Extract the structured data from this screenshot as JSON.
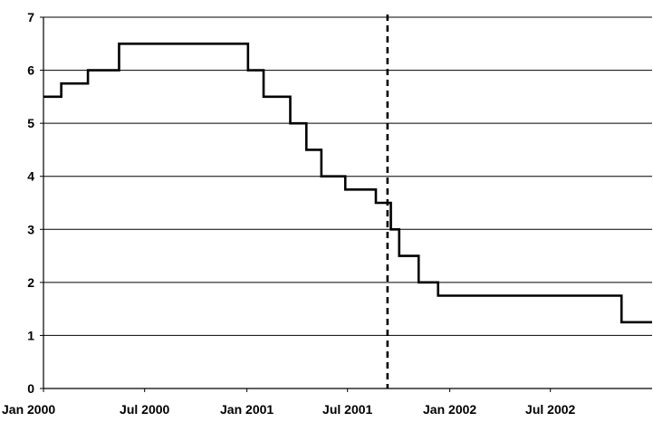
{
  "chart_data": {
    "type": "line",
    "step": true,
    "title": "",
    "xlabel": "",
    "ylabel": "",
    "ylim": [
      0,
      7
    ],
    "yticks": [
      0,
      1,
      2,
      3,
      4,
      5,
      6,
      7
    ],
    "xlim": [
      "2000-01-01",
      "2002-12-31"
    ],
    "xticks": [
      {
        "date": "2000-01-01",
        "label": "Jan 2000"
      },
      {
        "date": "2000-07-01",
        "label": "Jul 2000"
      },
      {
        "date": "2001-01-01",
        "label": "Jan 2001"
      },
      {
        "date": "2001-07-01",
        "label": "Jul 2001"
      },
      {
        "date": "2002-01-01",
        "label": "Jan 2002"
      },
      {
        "date": "2002-07-01",
        "label": "Jul 2002"
      }
    ],
    "grid": "horizontal",
    "colors": {
      "line": "#000000",
      "grid": "#000000",
      "marker": "#000000"
    },
    "series": [
      {
        "points": [
          {
            "x": "2000-01-01",
            "y": 5.5
          },
          {
            "x": "2000-02-02",
            "y": 5.75
          },
          {
            "x": "2000-03-21",
            "y": 6.0
          },
          {
            "x": "2000-05-16",
            "y": 6.5
          },
          {
            "x": "2001-01-03",
            "y": 6.0
          },
          {
            "x": "2001-01-31",
            "y": 5.5
          },
          {
            "x": "2001-03-20",
            "y": 5.0
          },
          {
            "x": "2001-04-18",
            "y": 4.5
          },
          {
            "x": "2001-05-15",
            "y": 4.0
          },
          {
            "x": "2001-06-27",
            "y": 3.75
          },
          {
            "x": "2001-08-21",
            "y": 3.5
          },
          {
            "x": "2001-09-17",
            "y": 3.0
          },
          {
            "x": "2001-10-02",
            "y": 2.5
          },
          {
            "x": "2001-11-06",
            "y": 2.0
          },
          {
            "x": "2001-12-11",
            "y": 1.75
          },
          {
            "x": "2002-11-06",
            "y": 1.25
          },
          {
            "x": "2002-12-31",
            "y": 1.25
          }
        ]
      }
    ],
    "vertical_markers": [
      {
        "x": "2001-09-11",
        "style": "dashed"
      }
    ]
  }
}
